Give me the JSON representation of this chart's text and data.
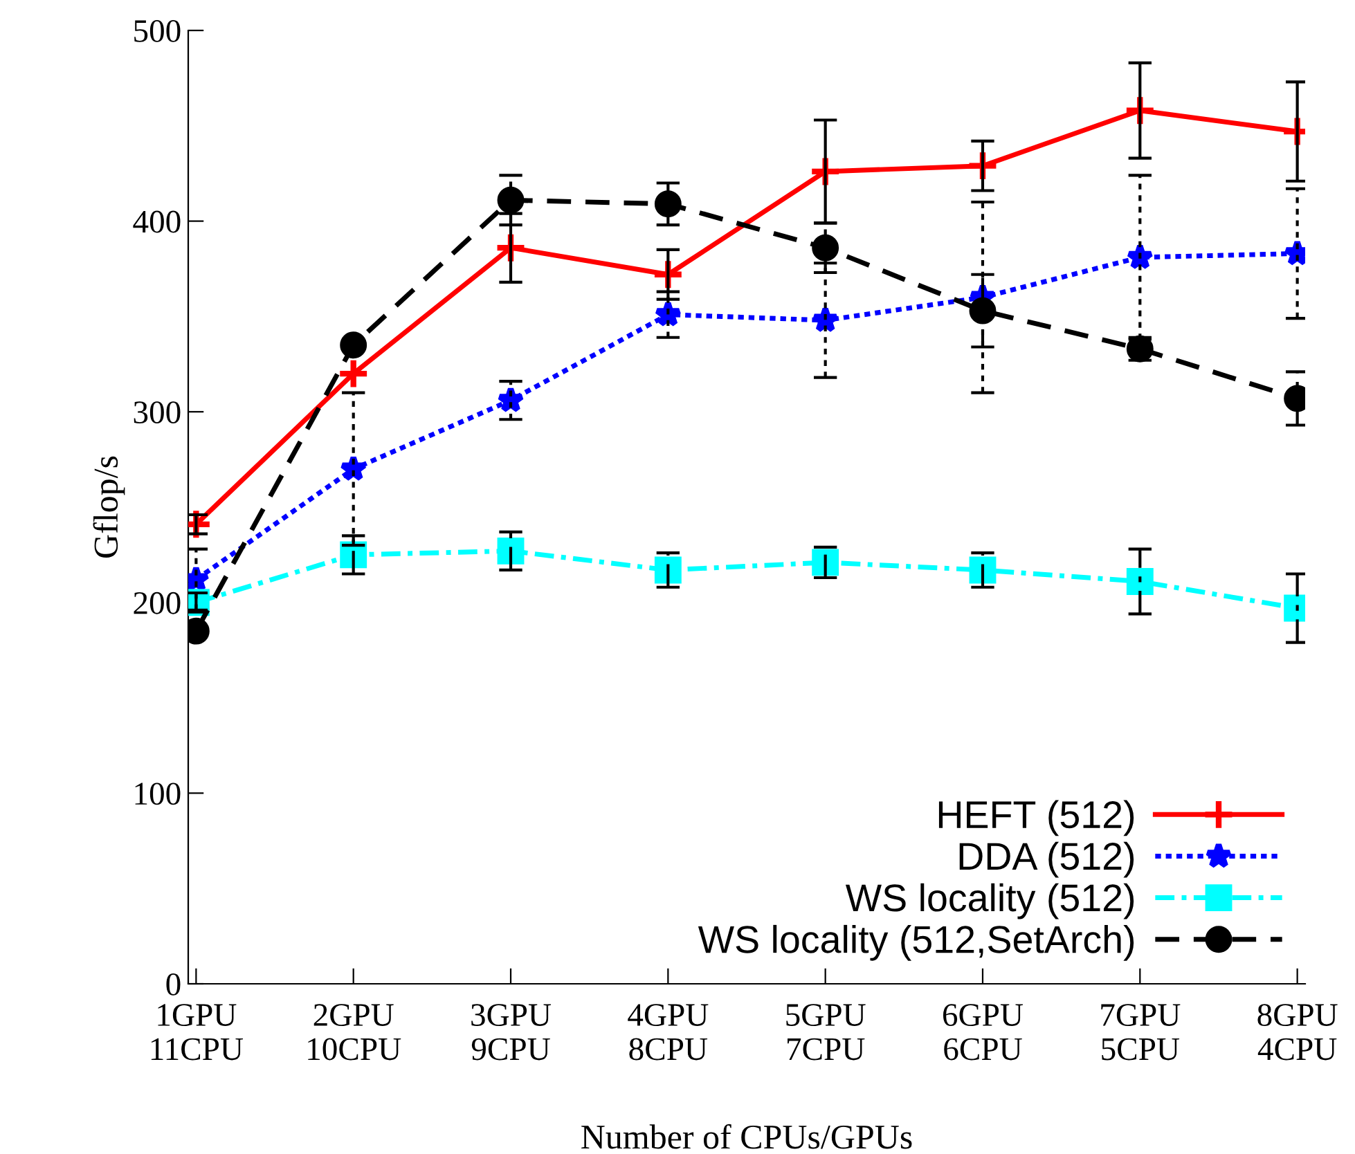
{
  "chart_data": {
    "type": "line",
    "xlabel": "Number of CPUs/GPUs",
    "ylabel": "Gflop/s",
    "categories": [
      "1GPU\n11CPU",
      "2GPU\n10CPU",
      "3GPU\n9CPU",
      "4GPU\n8CPU",
      "5GPU\n7CPU",
      "6GPU\n6CPU",
      "7GPU\n5CPU",
      "8GPU\n4CPU"
    ],
    "ylim": [
      0,
      500
    ],
    "yticks": [
      0,
      100,
      200,
      300,
      400,
      500
    ],
    "grid": false,
    "legend": "bottom right",
    "series": [
      {
        "name": "HEFT (512)",
        "color": "#ff0000",
        "marker": "cross",
        "line_style": "solid",
        "values": [
          241,
          320,
          386,
          372,
          426,
          429,
          458,
          447
        ],
        "errors": [
          5,
          null,
          18,
          13,
          27,
          13,
          25,
          26
        ]
      },
      {
        "name": "DDA (512)",
        "color": "#0000ff",
        "marker": "star",
        "line_style": "dotted",
        "values": [
          212,
          270,
          306,
          351,
          348,
          360,
          381,
          383
        ],
        "errors": [
          16,
          40,
          10,
          12,
          30,
          50,
          43,
          34
        ]
      },
      {
        "name": "WS locality (512)",
        "color": "#00ffff",
        "marker": "square",
        "line_style": "dashdot",
        "values": [
          200,
          225,
          227,
          217,
          221,
          217,
          211,
          197
        ],
        "errors": [
          5,
          10,
          10,
          9,
          8,
          9,
          17,
          18
        ]
      },
      {
        "name": "WS locality (512,SetArch)",
        "color": "#000000",
        "marker": "circle",
        "line_style": "dashed",
        "values": [
          185,
          335,
          411,
          409,
          386,
          353,
          333,
          307
        ],
        "errors": [
          null,
          null,
          13,
          11,
          13,
          19,
          6,
          14
        ]
      }
    ]
  }
}
